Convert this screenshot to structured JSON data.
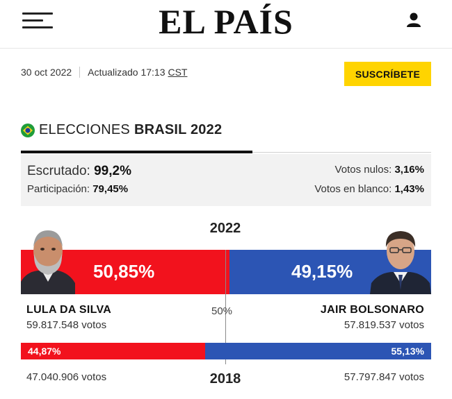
{
  "header": {
    "logo": "EL PAÍS",
    "menu_icon": "hamburger-menu-icon",
    "user_icon": "user-icon"
  },
  "datebar": {
    "date": "30 oct 2022",
    "updated_prefix": "Actualizado 17:13",
    "timezone": "CST",
    "subscribe_label": "SUSCRÍBETE"
  },
  "section": {
    "flag_icon": "brazil-flag-icon",
    "title_prefix": "ELECCIONES",
    "title_bold": "BRASIL 2022"
  },
  "stats": {
    "escrutado_label": "Escrutado:",
    "escrutado_value": "99,2%",
    "participacion_label": "Participación:",
    "participacion_value": "79,45%",
    "nulos_label": "Votos nulos:",
    "nulos_value": "3,16%",
    "blanco_label": "Votos en blanco:",
    "blanco_value": "1,43%"
  },
  "results": {
    "year_2022": "2022",
    "year_2018": "2018",
    "midpoint_label": "50%",
    "lula": {
      "name": "LULA DA SILVA",
      "pct_2022": "50,85%",
      "share_2022": 50.85,
      "votes_2022": "59.817.548 votos",
      "pct_2018": "44,87%",
      "share_2018": 44.87,
      "votes_2018": "47.040.906 votos"
    },
    "bolsonaro": {
      "name": "JAIR BOLSONARO",
      "pct_2022": "49,15%",
      "share_2022": 49.15,
      "votes_2022": "57.819.537 votos",
      "pct_2018": "55,13%",
      "share_2018": 55.13,
      "votes_2018": "57.797.847 votos"
    }
  },
  "colors": {
    "red": "#f2121d",
    "blue": "#2c55b4",
    "yellow": "#ffd400"
  }
}
